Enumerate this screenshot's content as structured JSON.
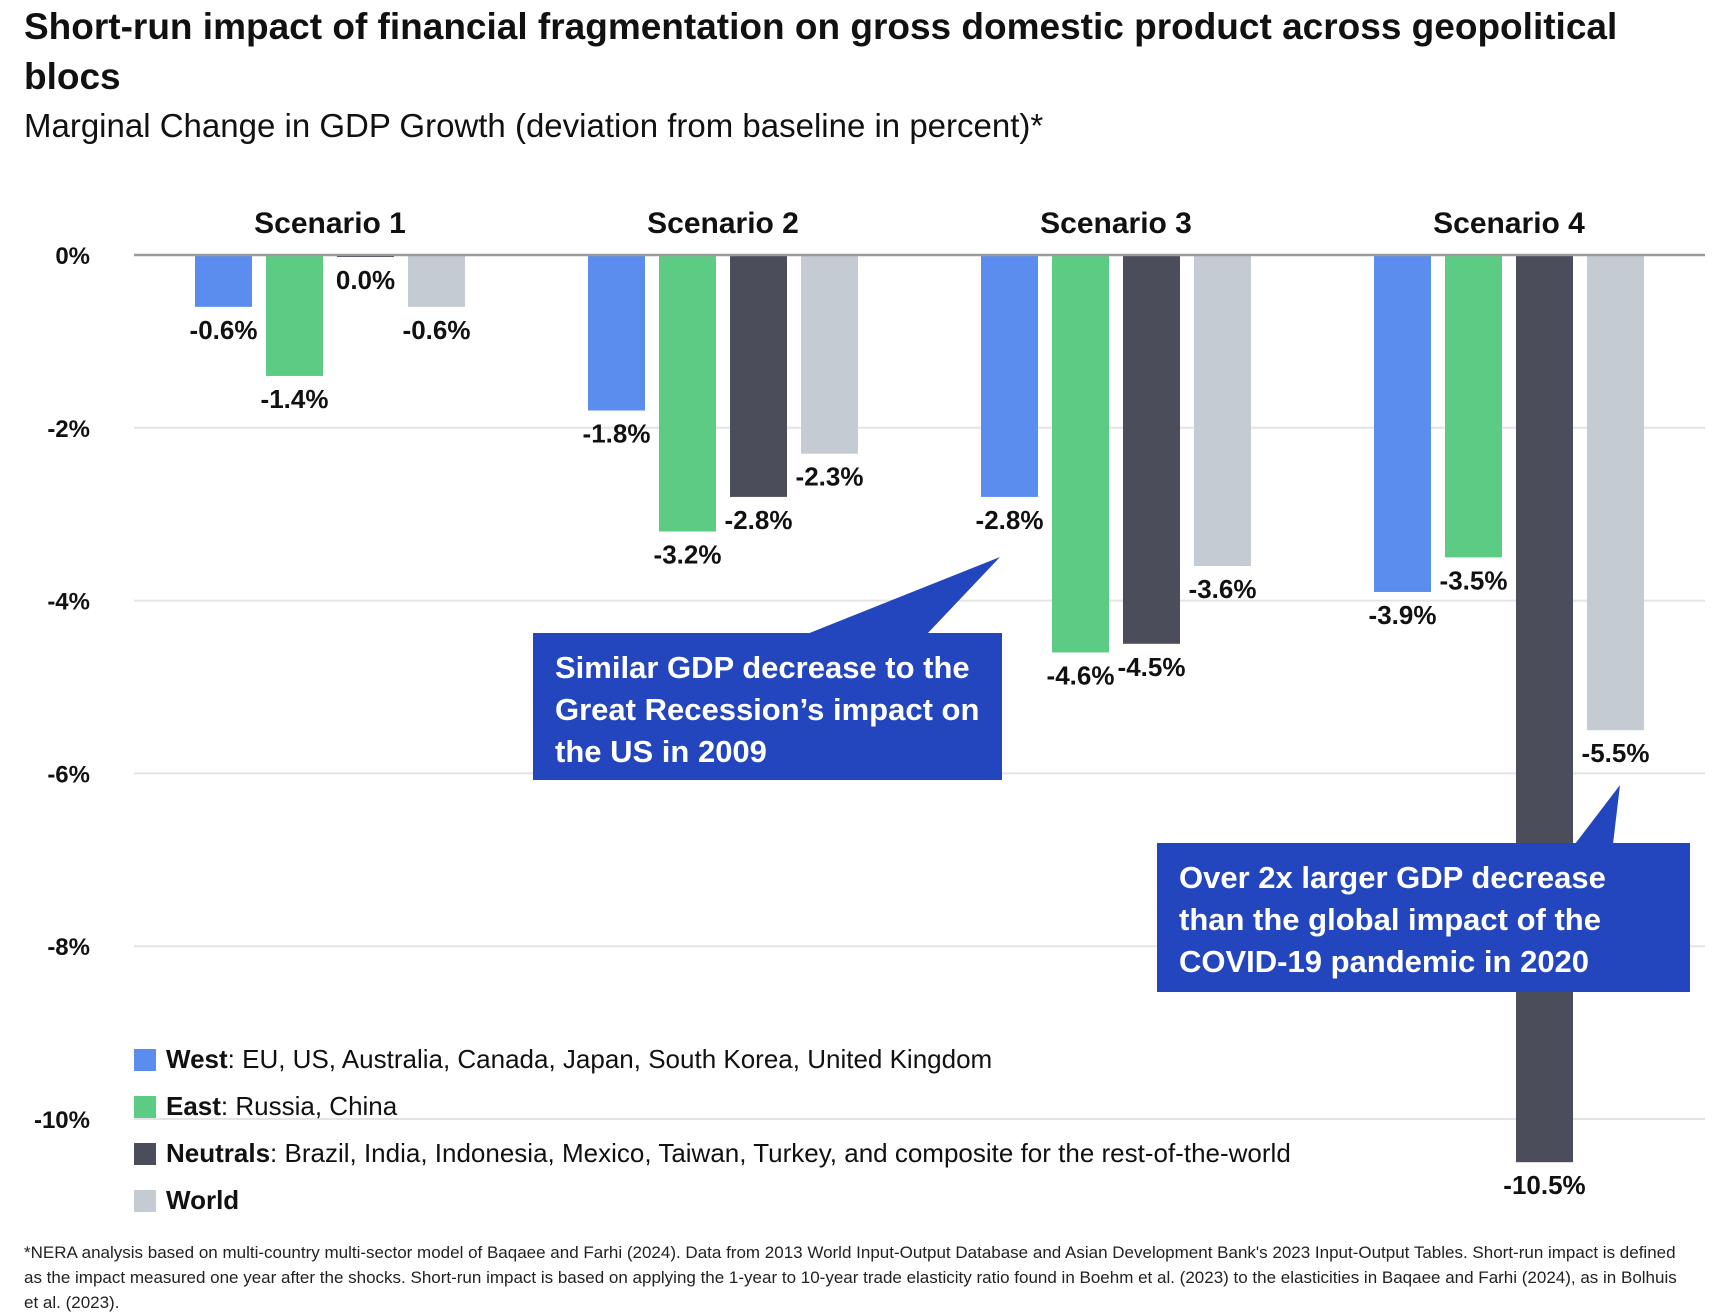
{
  "title": "Short-run impact of financial fragmentation on gross domestic product across geopolitical blocs",
  "subtitle": "Marginal Change in GDP Growth (deviation from baseline in percent)*",
  "chart_data": {
    "type": "bar",
    "categories": [
      "Scenario 1",
      "Scenario 2",
      "Scenario 3",
      "Scenario 4"
    ],
    "series": [
      {
        "name": "West",
        "color": "#5B8DEF",
        "values": [
          -0.6,
          -1.8,
          -2.8,
          -3.9
        ]
      },
      {
        "name": "East",
        "color": "#5CCB84",
        "values": [
          -1.4,
          -3.2,
          -4.6,
          -3.5
        ]
      },
      {
        "name": "Neutrals",
        "color": "#4B4E5A",
        "values": [
          0.0,
          -2.8,
          -4.5,
          -10.5
        ]
      },
      {
        "name": "World",
        "color": "#C5CBD3",
        "values": [
          -0.6,
          -2.3,
          -3.6,
          -5.5
        ]
      }
    ],
    "data_labels": [
      [
        "-0.6%",
        "-1.4%",
        "0.0%",
        "-0.6%"
      ],
      [
        "-1.8%",
        "-3.2%",
        "-2.8%",
        "-2.3%"
      ],
      [
        "-2.8%",
        "-4.6%",
        "-4.5%",
        "-3.6%"
      ],
      [
        "-3.9%",
        "-3.5%",
        "-10.5%",
        "-5.5%"
      ]
    ],
    "y_ticks": [
      0,
      -2,
      -4,
      -6,
      -8,
      -10
    ],
    "y_tick_labels": [
      "0%",
      "-2%",
      "-4%",
      "-6%",
      "-8%",
      "-10%"
    ],
    "ylim": [
      -10.5,
      0
    ],
    "grid": true,
    "legend_position": "bottom-left"
  },
  "legend": [
    {
      "name": "West",
      "desc": ": EU, US, Australia, Canada, Japan, South Korea, United Kingdom"
    },
    {
      "name": "East",
      "desc": ": Russia, China"
    },
    {
      "name": "Neutrals",
      "desc": ": Brazil, India, Indonesia, Mexico, Taiwan, Turkey, and composite for the rest-of-the-world"
    },
    {
      "name": "World",
      "desc": ""
    }
  ],
  "callouts": [
    {
      "text": "Similar GDP decrease to the Great Recession’s impact on the US in 2009",
      "color": "#2346BE"
    },
    {
      "text": "Over 2x larger GDP decrease than the global impact of the COVID-19 pandemic in 2020",
      "color": "#2346BE"
    }
  ],
  "footnote": "*NERA analysis based on multi-country multi-sector model of Baqaee and Farhi (2024). Data from 2013 World Input-Output Database and Asian Development Bank's 2023 Input-Output Tables. Short-run impact is defined as the impact measured one year after the shocks. Short-run impact is based on applying the 1-year to 10-year trade elasticity ratio found in Boehm et al. (2023) to the elasticities in Baqaee and Farhi (2024), as in Bolhuis et al. (2023)."
}
